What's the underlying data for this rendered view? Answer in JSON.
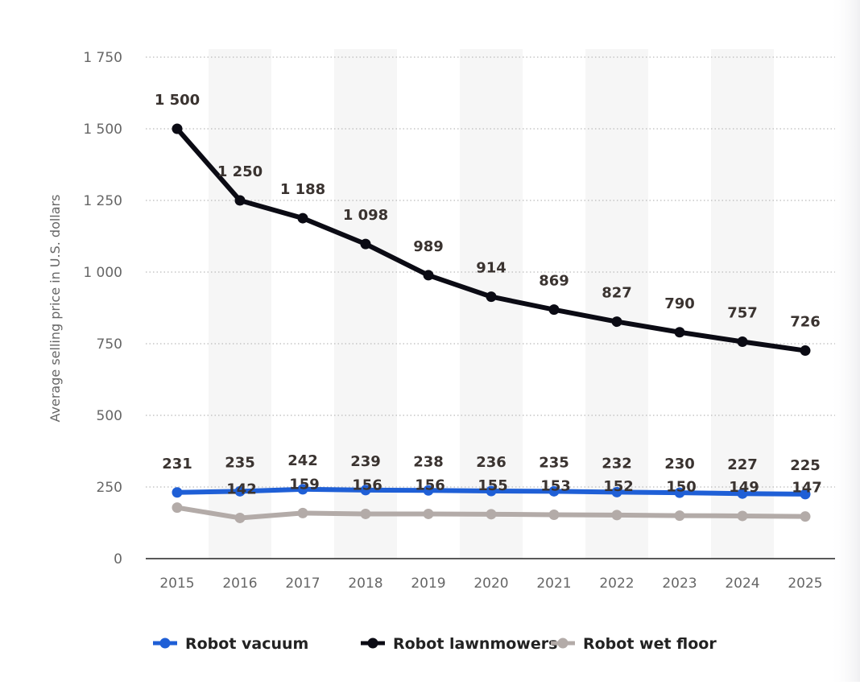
{
  "chart_data": {
    "type": "line",
    "ylabel": "Average selling price in U.S. dollars",
    "xlabel": "",
    "ylim": [
      0,
      1750
    ],
    "yticks": [
      0,
      250,
      500,
      750,
      1000,
      1250,
      1500,
      1750
    ],
    "ytick_labels": [
      "0",
      "250",
      "500",
      "750",
      "1 000",
      "1 250",
      "1 500",
      "1 750"
    ],
    "categories": [
      "2015",
      "2016",
      "2017",
      "2018",
      "2019",
      "2020",
      "2021",
      "2022",
      "2023",
      "2024",
      "2025"
    ],
    "grid": "horizontal dotted",
    "legend_position": "bottom-left",
    "series": [
      {
        "name": "Robot vacuum",
        "color": "#1f5fd6",
        "values": [
          231,
          235,
          242,
          239,
          238,
          236,
          235,
          232,
          230,
          227,
          225
        ],
        "labels": [
          "231",
          "235",
          "242",
          "239",
          "238",
          "236",
          "235",
          "232",
          "230",
          "227",
          "225"
        ]
      },
      {
        "name": "Robot lawnmowers",
        "color": "#0b0b14",
        "values": [
          1500,
          1250,
          1188,
          1098,
          989,
          914,
          869,
          827,
          790,
          757,
          726
        ],
        "labels": [
          "1 500",
          "1 250",
          "1 188",
          "1 098",
          "989",
          "914",
          "869",
          "827",
          "790",
          "757",
          "726"
        ]
      },
      {
        "name": "Robot wet floor",
        "color": "#b3aba8",
        "values": [
          178,
          142,
          159,
          156,
          156,
          155,
          153,
          152,
          150,
          149,
          147
        ],
        "labels": [
          "",
          "142",
          "159",
          "156",
          "156",
          "155",
          "153",
          "152",
          "150",
          "149",
          "147"
        ]
      }
    ]
  }
}
